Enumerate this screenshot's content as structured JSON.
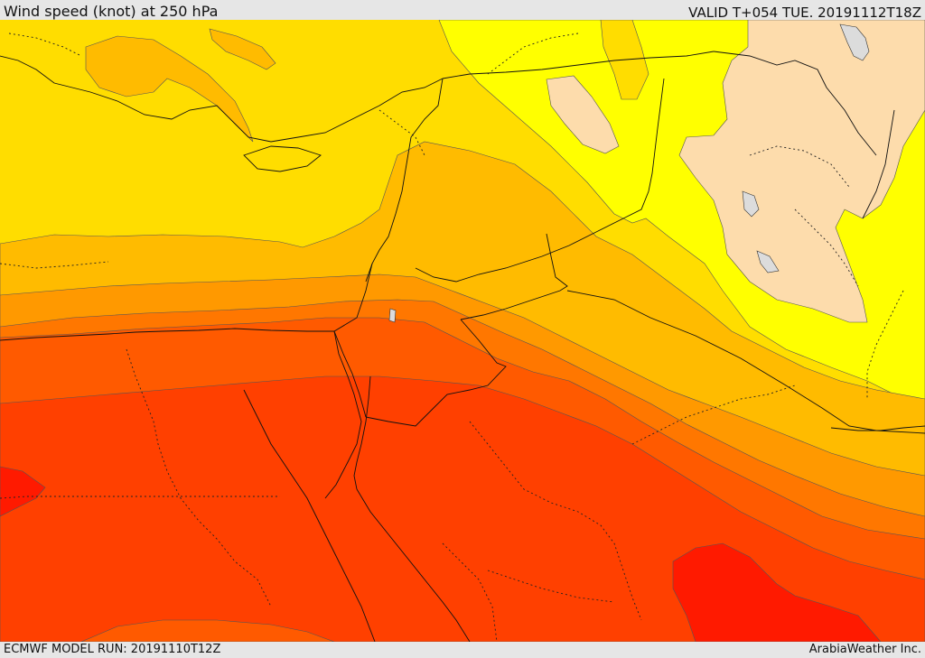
{
  "header": {
    "title": "Wind speed (knot) at 250 hPa",
    "valid_time": "VALID T+054 TUE. 20191112T18Z"
  },
  "footer": {
    "model_run": "ECMWF MODEL RUN: 20191110T12Z",
    "credit": "ArabiaWeather Inc."
  },
  "colors": {
    "band_peach": "#fddcac",
    "band_yellow": "#ffff00",
    "band_gold": "#ffdd00",
    "band_amber": "#ffbb00",
    "band_orange": "#ff9900",
    "band_dark_orange": "#ff7700",
    "band_red_orange": "#ff5a00",
    "band_orange_red": "#ff4000",
    "band_red": "#ff1a00",
    "lake": "#dcdcdc"
  }
}
